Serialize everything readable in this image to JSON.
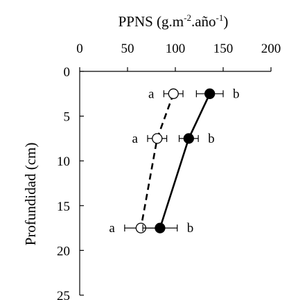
{
  "chart_data": {
    "type": "line",
    "title": {
      "main": "PPNS (g.m",
      "sup1": "-2",
      "mid": ".año",
      "sup2": "-1",
      "end": ")"
    },
    "xlabel": "",
    "ylabel": "Profundidad (cm)",
    "x_axis_position": "top",
    "y_axis_inverted": true,
    "xlim": [
      0,
      200
    ],
    "ylim": [
      0,
      25
    ],
    "xticks": [
      "0",
      "50",
      "100",
      "150",
      "200"
    ],
    "yticks": [
      "0",
      "5",
      "10",
      "15",
      "20",
      "25"
    ],
    "grid": false,
    "legend": "none",
    "series": [
      {
        "style": "open-circle-dashed",
        "x": [
          98,
          81,
          64
        ],
        "y": [
          2.5,
          7.5,
          17.5
        ],
        "xerr": [
          10,
          10,
          17
        ],
        "labels": [
          "a",
          "a",
          "a"
        ]
      },
      {
        "style": "filled-circle-solid",
        "x": [
          136,
          114,
          84
        ],
        "y": [
          2.5,
          7.5,
          17.5
        ],
        "xerr": [
          14,
          10,
          18
        ],
        "labels": [
          "b",
          "b",
          "b"
        ]
      }
    ],
    "colors": {
      "line": "#000000",
      "open_fill": "#ffffff",
      "filled_fill": "#000000"
    }
  }
}
